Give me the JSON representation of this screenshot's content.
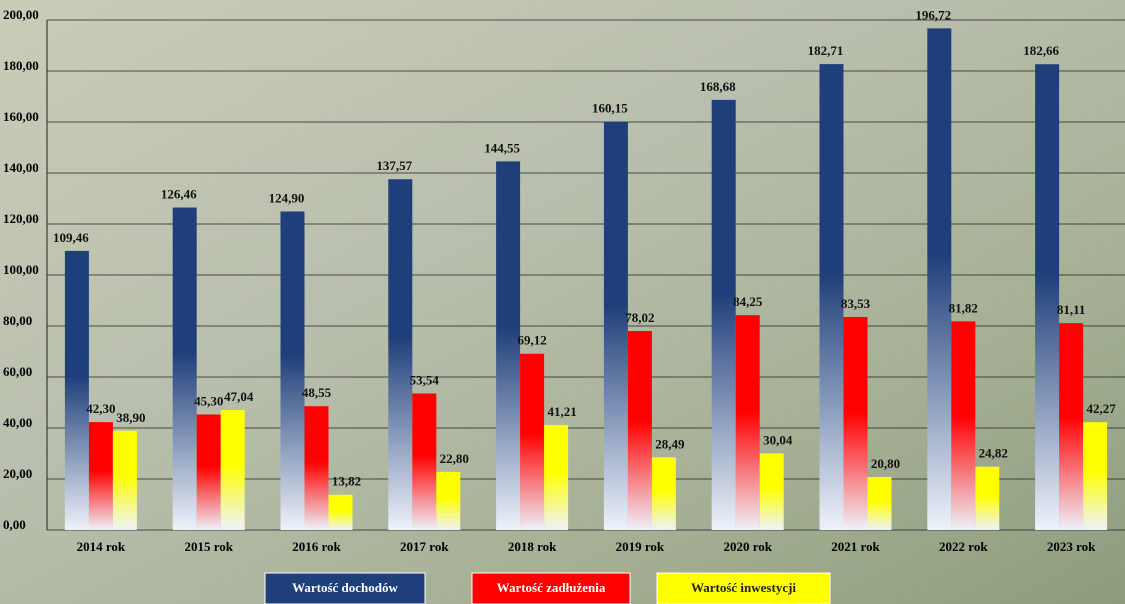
{
  "chart_data": {
    "type": "bar",
    "categories": [
      "2014 rok",
      "2015 rok",
      "2016 rok",
      "2017 rok",
      "2018 rok",
      "2019 rok",
      "2020 rok",
      "2021 rok",
      "2022 rok",
      "2023 rok"
    ],
    "series": [
      {
        "name": "Wartość dochodów",
        "color": "#1f3f7a",
        "values": [
          109.46,
          126.46,
          124.9,
          137.57,
          144.55,
          160.15,
          168.68,
          182.71,
          196.72,
          182.66
        ],
        "value_labels": [
          "109,46",
          "126,46",
          "124,90",
          "137,57",
          "144,55",
          "160,15",
          "168,68",
          "182,71",
          "196,72",
          "182,66"
        ]
      },
      {
        "name": "Wartość zadłużenia",
        "color": "#ff0000",
        "values": [
          42.3,
          45.3,
          48.55,
          53.54,
          69.12,
          78.02,
          84.25,
          83.53,
          81.82,
          81.11
        ],
        "value_labels": [
          "42,30",
          "45,30",
          "48,55",
          "53,54",
          "69,12",
          "78,02",
          "84,25",
          "83,53",
          "81,82",
          "81,11"
        ]
      },
      {
        "name": "Wartość inwestycji",
        "color": "#ffff00",
        "values": [
          38.9,
          47.04,
          13.82,
          22.8,
          41.21,
          28.49,
          30.04,
          20.8,
          24.82,
          42.27
        ],
        "value_labels": [
          "38,90",
          "47,04",
          "13,82",
          "22,80",
          "41,21",
          "28,49",
          "30,04",
          "20,80",
          "24,82",
          "42,27"
        ]
      }
    ],
    "ylim": [
      0,
      200
    ],
    "yticks": [
      {
        "value": 0,
        "label": "0,00"
      },
      {
        "value": 20,
        "label": "20,00"
      },
      {
        "value": 40,
        "label": "40,00"
      },
      {
        "value": 60,
        "label": "60,00"
      },
      {
        "value": 80,
        "label": "80,00"
      },
      {
        "value": 100,
        "label": "100,00"
      },
      {
        "value": 120,
        "label": "120,00"
      },
      {
        "value": 140,
        "label": "140,00"
      },
      {
        "value": 160,
        "label": "160,00"
      },
      {
        "value": 180,
        "label": "180,00"
      },
      {
        "value": 200,
        "label": "200,00"
      }
    ],
    "grid": true
  }
}
